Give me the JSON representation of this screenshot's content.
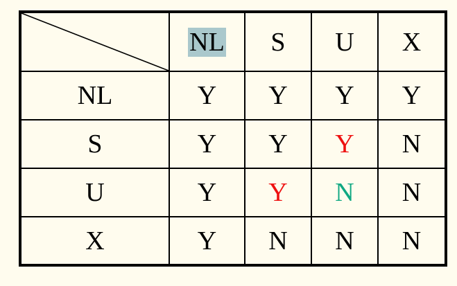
{
  "columns": [
    "NL",
    "S",
    "U",
    "X"
  ],
  "rows": [
    {
      "label": "NL",
      "cells": [
        "Y",
        "Y",
        "Y",
        "Y"
      ],
      "colors": [
        "",
        "",
        "",
        ""
      ]
    },
    {
      "label": "S",
      "cells": [
        "Y",
        "Y",
        "Y",
        "N"
      ],
      "colors": [
        "",
        "",
        "red",
        ""
      ]
    },
    {
      "label": "U",
      "cells": [
        "Y",
        "Y",
        "N",
        "N"
      ],
      "colors": [
        "",
        "red",
        "teal",
        ""
      ]
    },
    {
      "label": "X",
      "cells": [
        "Y",
        "N",
        "N",
        "N"
      ],
      "colors": [
        "",
        "",
        "",
        ""
      ]
    }
  ],
  "highlighted_header": "NL",
  "palette": {
    "background": "#fffcee",
    "highlight": "#aac8cc",
    "red": "#ee1111",
    "teal": "#10a882"
  }
}
